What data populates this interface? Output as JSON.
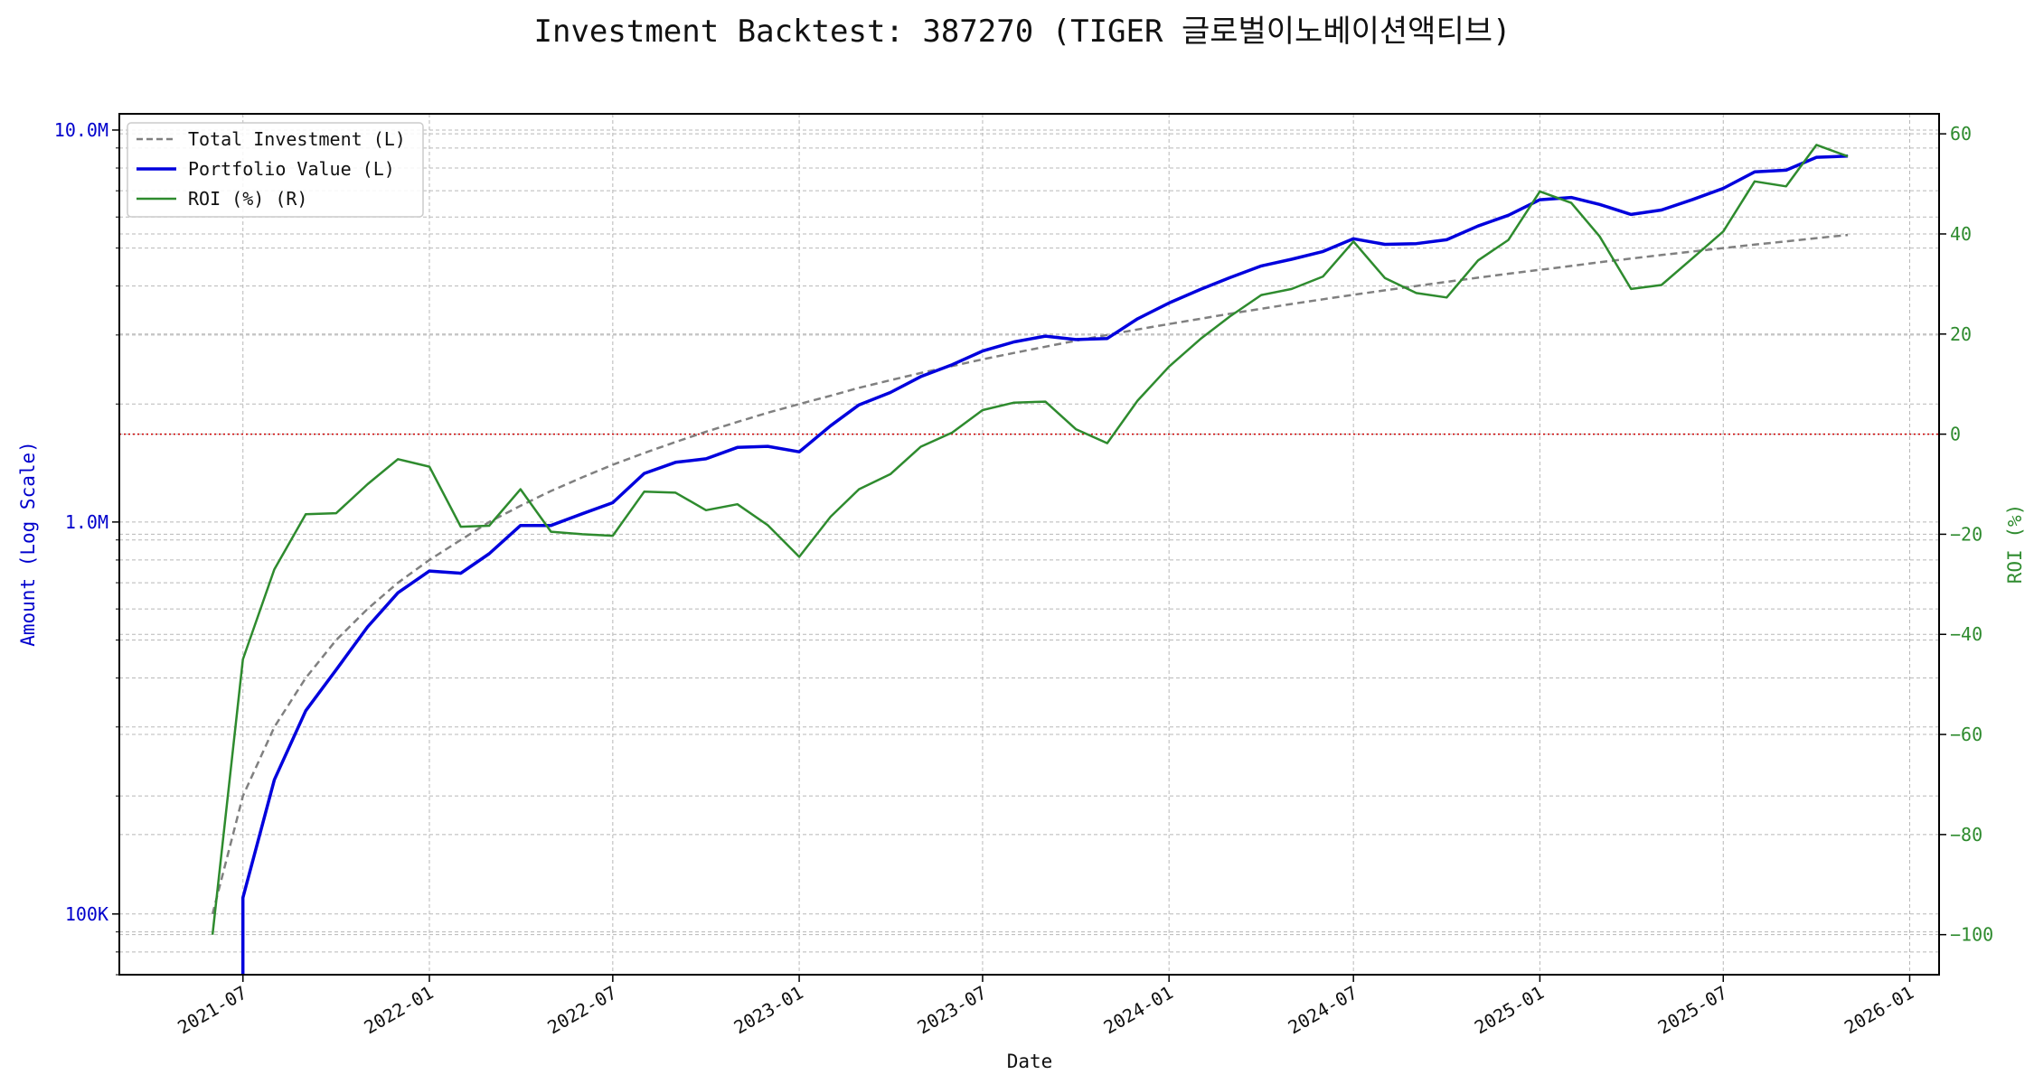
{
  "chart_data": {
    "type": "line",
    "title": "Investment Backtest: 387270 (TIGER 글로벌이노베이션액티브)",
    "xlabel": "Date",
    "ylabel_left": "Amount (Log Scale)",
    "ylabel_right": "ROI (%)",
    "left_axis": {
      "scale": "log",
      "range": [
        70000,
        11000000
      ],
      "tick_values": [
        100000,
        1000000,
        10000000
      ],
      "tick_labels": [
        "100K",
        "1.0M",
        "10.0M"
      ],
      "color": "#0000cc"
    },
    "right_axis": {
      "scale": "linear",
      "range": [
        -108,
        64
      ],
      "tick_values": [
        -100,
        -80,
        -60,
        -40,
        -20,
        0,
        20,
        40,
        60
      ],
      "tick_labels": [
        "−100",
        "−80",
        "−60",
        "−40",
        "−20",
        "0",
        "20",
        "40",
        "60"
      ],
      "color": "#2e8b2e"
    },
    "x_axis": {
      "range": [
        "2021-03-01",
        "2026-01-30"
      ],
      "tick_values": [
        "2021-07-01",
        "2022-01-01",
        "2022-07-01",
        "2023-01-01",
        "2023-07-01",
        "2024-01-01",
        "2024-07-01",
        "2025-01-01",
        "2025-07-01",
        "2026-01-01"
      ],
      "tick_labels": [
        "2021-07",
        "2022-01",
        "2022-07",
        "2023-01",
        "2023-07",
        "2024-01",
        "2024-07",
        "2025-01",
        "2025-07",
        "2026-01"
      ]
    },
    "grid": true,
    "legend_position": "top-left",
    "zero_line": {
      "value": 0,
      "color": "#cc0000"
    },
    "x": [
      "2021-06-01",
      "2021-07-01",
      "2021-08-01",
      "2021-09-01",
      "2021-10-01",
      "2021-11-01",
      "2021-12-01",
      "2022-01-01",
      "2022-02-01",
      "2022-03-01",
      "2022-04-01",
      "2022-05-01",
      "2022-06-01",
      "2022-07-01",
      "2022-08-01",
      "2022-09-01",
      "2022-10-01",
      "2022-11-01",
      "2022-12-01",
      "2023-01-01",
      "2023-02-01",
      "2023-03-01",
      "2023-04-01",
      "2023-05-01",
      "2023-06-01",
      "2023-07-01",
      "2023-08-01",
      "2023-09-01",
      "2023-10-01",
      "2023-11-01",
      "2023-12-01",
      "2024-01-01",
      "2024-02-01",
      "2024-03-01",
      "2024-04-01",
      "2024-05-01",
      "2024-06-01",
      "2024-07-01",
      "2024-08-01",
      "2024-09-01",
      "2024-10-01",
      "2024-11-01",
      "2024-12-01",
      "2025-01-01",
      "2025-02-01",
      "2025-03-01",
      "2025-04-01",
      "2025-05-01",
      "2025-06-01",
      "2025-07-01",
      "2025-08-01",
      "2025-09-01",
      "2025-10-01",
      "2025-11-01"
    ],
    "series": [
      {
        "name": "Total Investment (L)",
        "axis": "left",
        "color": "#808080",
        "style": "dashed",
        "values": [
          100000,
          200000,
          300000,
          400000,
          500000,
          600000,
          700000,
          800000,
          900000,
          1000000,
          1100000,
          1200000,
          1300000,
          1400000,
          1500000,
          1600000,
          1700000,
          1800000,
          1900000,
          2000000,
          2100000,
          2200000,
          2300000,
          2400000,
          2500000,
          2600000,
          2700000,
          2800000,
          2900000,
          3000000,
          3100000,
          3200000,
          3300000,
          3400000,
          3500000,
          3600000,
          3700000,
          3800000,
          3900000,
          4000000,
          4100000,
          4200000,
          4300000,
          4400000,
          4500000,
          4600000,
          4700000,
          4800000,
          4900000,
          5000000,
          5100000,
          5200000,
          5300000,
          5400000
        ]
      },
      {
        "name": "Portfolio Value (L)",
        "axis": "left",
        "color": "#0000dd",
        "style": "solid",
        "values": [
          null,
          110000,
          220000,
          330000,
          420000,
          540000,
          660000,
          750000,
          740000,
          830000,
          980000,
          980000,
          1050000,
          1120000,
          1330000,
          1420000,
          1450000,
          1550000,
          1560000,
          1510000,
          1760000,
          1990000,
          2140000,
          2350000,
          2520000,
          2730000,
          2880000,
          2980000,
          2920000,
          2940000,
          3300000,
          3620000,
          3920000,
          4200000,
          4500000,
          4680000,
          4900000,
          5280000,
          5110000,
          5130000,
          5250000,
          5690000,
          6060000,
          6640000,
          6730000,
          6460000,
          6090000,
          6250000,
          6650000,
          7100000,
          7820000,
          7900000,
          8520000,
          8580000
        ]
      },
      {
        "name": "ROI (%) (R)",
        "axis": "right",
        "color": "#2e8b2e",
        "style": "solid",
        "values": [
          -100,
          -45,
          -27,
          -16,
          -15.8,
          -10,
          -5,
          -6.5,
          -18.5,
          -18.3,
          -11,
          -19.5,
          -20,
          -20.3,
          -11.5,
          -11.7,
          -15.2,
          -14,
          -18.2,
          -24.5,
          -16.5,
          -11,
          -8,
          -2.5,
          0.3,
          4.8,
          6.3,
          6.5,
          1,
          -1.8,
          6.7,
          13.5,
          19,
          23.5,
          27.8,
          29,
          31.5,
          38.5,
          31.2,
          28.2,
          27.3,
          34.7,
          38.8,
          48.5,
          46.2,
          39.5,
          29,
          29.8,
          35.2,
          40.5,
          50.5,
          49.5,
          57.8,
          55.5
        ]
      }
    ]
  }
}
